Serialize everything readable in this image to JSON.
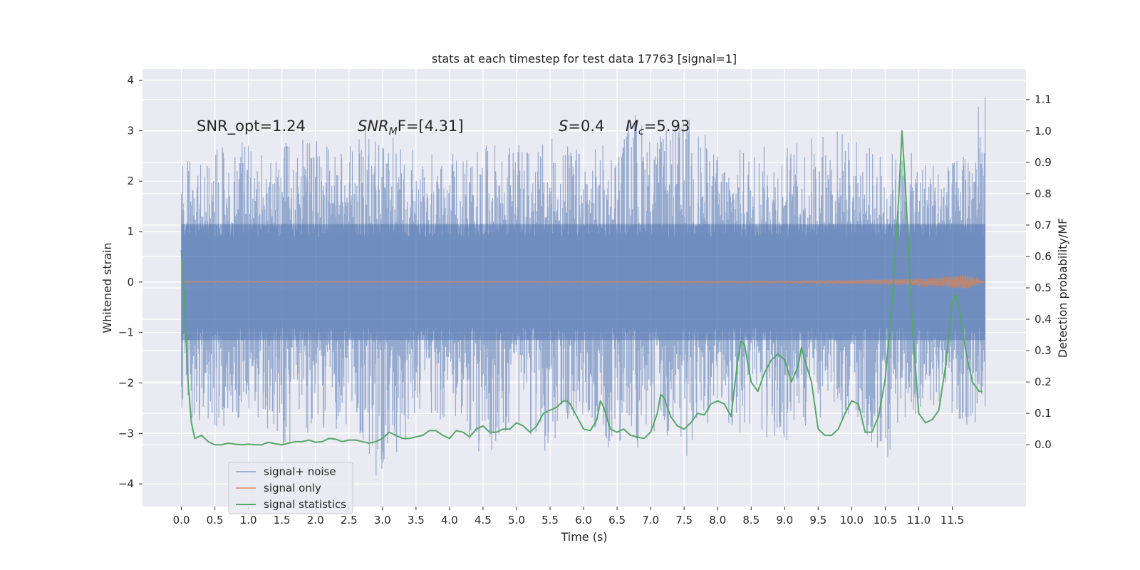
{
  "chart_data": {
    "type": "line",
    "title": "stats at each timestep for test data 17763 [signal=1]",
    "xlabel": "Time (s)",
    "ylabel": "Whitened strain",
    "y2label": "Detection probability/MF",
    "xlim": [
      -0.58,
      12.6
    ],
    "ylim": [
      -4.45,
      4.22
    ],
    "y2lim": [
      -0.197,
      1.197
    ],
    "x_ticks": [
      "0.0",
      "0.5",
      "1.0",
      "1.5",
      "2.0",
      "2.5",
      "3.0",
      "3.5",
      "4.0",
      "4.5",
      "5.0",
      "5.5",
      "6.0",
      "6.5",
      "7.0",
      "7.5",
      "8.0",
      "8.5",
      "9.0",
      "9.5",
      "10.0",
      "10.5",
      "11.0",
      "11.5"
    ],
    "y_ticks": [
      "4",
      "3",
      "2",
      "1",
      "0",
      "−1",
      "−2",
      "−3",
      "−4"
    ],
    "y2_ticks": [
      "1.1",
      "1.0",
      "0.9",
      "0.8",
      "0.7",
      "0.6",
      "0.5",
      "0.4",
      "0.3",
      "0.2",
      "0.1",
      "0.0"
    ],
    "grid": true,
    "legend_position": "bottom-left",
    "annotations": {
      "snr_opt": "SNR_opt=1.24",
      "snr_mf_base": "SNR",
      "snr_mf_sub": "M",
      "snr_mf_rest": "F=[4.31]",
      "s_sym": "S",
      "s_val": "=0.4",
      "mc_sym": "M",
      "mc_sub": "c",
      "mc_val": "=5.93"
    },
    "series": [
      {
        "name": "signal+ noise",
        "color": "#4c72b0",
        "opacity": 0.5,
        "axis": "left",
        "x_range": [
          0.0,
          11.99
        ],
        "envelope_peaks": [
          {
            "x": 0.05,
            "y": 2.4
          },
          {
            "x": 0.3,
            "y": 2.5
          },
          {
            "x": 0.5,
            "y": 3.0
          },
          {
            "x": 0.7,
            "y": 2.6
          },
          {
            "x": 1.0,
            "y": 2.9
          },
          {
            "x": 1.3,
            "y": 2.4
          },
          {
            "x": 1.5,
            "y": 2.8
          },
          {
            "x": 1.9,
            "y": 2.9
          },
          {
            "x": 2.3,
            "y": 2.6
          },
          {
            "x": 2.75,
            "y": 3.05
          },
          {
            "x": 3.3,
            "y": 3.0
          },
          {
            "x": 3.5,
            "y": 2.7
          },
          {
            "x": 4.2,
            "y": 2.5
          },
          {
            "x": 4.7,
            "y": 2.8
          },
          {
            "x": 5.2,
            "y": 2.7
          },
          {
            "x": 5.6,
            "y": 2.9
          },
          {
            "x": 6.0,
            "y": 2.6
          },
          {
            "x": 6.6,
            "y": 2.9
          },
          {
            "x": 6.7,
            "y": 3.6
          },
          {
            "x": 7.1,
            "y": 2.9
          },
          {
            "x": 7.6,
            "y": 3.35
          },
          {
            "x": 8.0,
            "y": 2.6
          },
          {
            "x": 8.5,
            "y": 2.7
          },
          {
            "x": 9.2,
            "y": 2.8
          },
          {
            "x": 9.75,
            "y": 3.2
          },
          {
            "x": 10.2,
            "y": 2.7
          },
          {
            "x": 10.7,
            "y": 2.6
          },
          {
            "x": 11.2,
            "y": 2.5
          },
          {
            "x": 11.5,
            "y": 2.4
          },
          {
            "x": 11.99,
            "y": 3.85
          }
        ],
        "envelope_troughs": [
          {
            "x": 0.0,
            "y": -2.6
          },
          {
            "x": 0.5,
            "y": -2.9
          },
          {
            "x": 0.75,
            "y": -3.2
          },
          {
            "x": 1.0,
            "y": -2.5
          },
          {
            "x": 1.5,
            "y": -3.3
          },
          {
            "x": 2.0,
            "y": -2.9
          },
          {
            "x": 2.5,
            "y": -3.0
          },
          {
            "x": 3.0,
            "y": -4.05
          },
          {
            "x": 3.5,
            "y": -2.8
          },
          {
            "x": 4.0,
            "y": -2.7
          },
          {
            "x": 4.5,
            "y": -3.55
          },
          {
            "x": 5.0,
            "y": -2.8
          },
          {
            "x": 5.5,
            "y": -3.5
          },
          {
            "x": 6.0,
            "y": -2.7
          },
          {
            "x": 6.5,
            "y": -3.55
          },
          {
            "x": 7.0,
            "y": -3.2
          },
          {
            "x": 7.5,
            "y": -3.6
          },
          {
            "x": 8.0,
            "y": -2.6
          },
          {
            "x": 8.5,
            "y": -3.3
          },
          {
            "x": 9.0,
            "y": -3.4
          },
          {
            "x": 9.5,
            "y": -2.7
          },
          {
            "x": 10.0,
            "y": -2.8
          },
          {
            "x": 10.5,
            "y": -3.6
          },
          {
            "x": 11.0,
            "y": -2.6
          },
          {
            "x": 11.5,
            "y": -2.6
          },
          {
            "x": 11.99,
            "y": -3.2
          }
        ]
      },
      {
        "name": "signal only",
        "color": "#dd8452",
        "opacity": 0.7,
        "axis": "left",
        "x": [
          0.0,
          2.0,
          4.0,
          6.0,
          8.0,
          9.0,
          10.0,
          10.5,
          11.0,
          11.3,
          11.6,
          11.7,
          11.99
        ],
        "amplitude": [
          0.005,
          0.006,
          0.008,
          0.011,
          0.016,
          0.02,
          0.03,
          0.04,
          0.06,
          0.08,
          0.12,
          0.13,
          0.0
        ]
      },
      {
        "name": "signal statistics",
        "color": "#55a868",
        "axis": "right",
        "x": [
          0.0,
          0.05,
          0.1,
          0.15,
          0.2,
          0.3,
          0.4,
          0.5,
          0.6,
          0.7,
          0.8,
          0.9,
          1.0,
          1.1,
          1.2,
          1.3,
          1.4,
          1.5,
          1.6,
          1.7,
          1.8,
          1.9,
          2.0,
          2.1,
          2.2,
          2.3,
          2.4,
          2.5,
          2.6,
          2.7,
          2.8,
          2.9,
          3.0,
          3.1,
          3.2,
          3.3,
          3.4,
          3.5,
          3.6,
          3.7,
          3.8,
          3.9,
          4.0,
          4.1,
          4.2,
          4.3,
          4.4,
          4.5,
          4.6,
          4.7,
          4.8,
          4.9,
          5.0,
          5.1,
          5.2,
          5.3,
          5.4,
          5.5,
          5.6,
          5.7,
          5.75,
          5.8,
          5.9,
          6.0,
          6.1,
          6.2,
          6.25,
          6.3,
          6.4,
          6.5,
          6.6,
          6.7,
          6.8,
          6.9,
          7.0,
          7.1,
          7.15,
          7.2,
          7.3,
          7.4,
          7.5,
          7.6,
          7.7,
          7.8,
          7.9,
          8.0,
          8.1,
          8.2,
          8.3,
          8.35,
          8.4,
          8.5,
          8.6,
          8.7,
          8.8,
          8.9,
          9.0,
          9.1,
          9.2,
          9.25,
          9.3,
          9.4,
          9.5,
          9.6,
          9.7,
          9.8,
          9.9,
          10.0,
          10.1,
          10.2,
          10.3,
          10.4,
          10.5,
          10.6,
          10.7,
          10.75,
          10.8,
          10.9,
          11.0,
          11.1,
          11.2,
          11.3,
          11.4,
          11.5,
          11.55,
          11.6,
          11.7,
          11.8,
          11.9,
          11.95
        ],
        "values": [
          0.62,
          0.45,
          0.2,
          0.07,
          0.02,
          0.03,
          0.01,
          0.0,
          0.0,
          0.005,
          0.002,
          0.0,
          0.002,
          0.0,
          0.0,
          0.008,
          0.003,
          0.0,
          0.005,
          0.01,
          0.01,
          0.015,
          0.008,
          0.01,
          0.02,
          0.018,
          0.01,
          0.015,
          0.015,
          0.01,
          0.005,
          0.01,
          0.02,
          0.04,
          0.03,
          0.02,
          0.02,
          0.025,
          0.03,
          0.045,
          0.045,
          0.03,
          0.02,
          0.045,
          0.04,
          0.025,
          0.05,
          0.06,
          0.04,
          0.04,
          0.05,
          0.05,
          0.07,
          0.06,
          0.04,
          0.06,
          0.1,
          0.11,
          0.12,
          0.14,
          0.14,
          0.13,
          0.09,
          0.05,
          0.045,
          0.08,
          0.14,
          0.12,
          0.05,
          0.04,
          0.05,
          0.03,
          0.025,
          0.02,
          0.04,
          0.1,
          0.16,
          0.15,
          0.09,
          0.06,
          0.05,
          0.07,
          0.1,
          0.095,
          0.13,
          0.14,
          0.13,
          0.09,
          0.27,
          0.33,
          0.32,
          0.2,
          0.17,
          0.23,
          0.27,
          0.29,
          0.27,
          0.2,
          0.25,
          0.31,
          0.27,
          0.2,
          0.05,
          0.03,
          0.03,
          0.05,
          0.1,
          0.14,
          0.13,
          0.04,
          0.04,
          0.09,
          0.21,
          0.45,
          0.78,
          1.0,
          0.83,
          0.4,
          0.1,
          0.07,
          0.08,
          0.11,
          0.25,
          0.45,
          0.48,
          0.44,
          0.3,
          0.2,
          0.17,
          0.17
        ]
      }
    ]
  }
}
